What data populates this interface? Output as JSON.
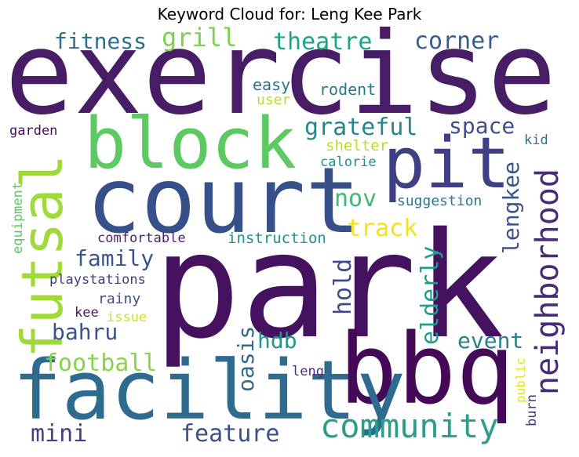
{
  "chart_data": {
    "type": "wordcloud",
    "title": "Keyword Cloud for: Leng Kee Park",
    "words": [
      {
        "text": "park",
        "color": "#45125f"
      },
      {
        "text": "exercise",
        "color": "#471d66"
      },
      {
        "text": "bbq",
        "color": "#440a57"
      },
      {
        "text": "court",
        "color": "#38508a"
      },
      {
        "text": "facility",
        "color": "#2e6b8e"
      },
      {
        "text": "block",
        "color": "#5dc962"
      },
      {
        "text": "pit",
        "color": "#3e3f85"
      },
      {
        "text": "futsal",
        "color": "#9fda3a"
      },
      {
        "text": "neighborhood",
        "color": "#472b77"
      },
      {
        "text": "community",
        "color": "#2a9e8a"
      },
      {
        "text": "fitness",
        "color": "#2f6f8e"
      },
      {
        "text": "grill",
        "color": "#7cd250"
      },
      {
        "text": "theatre",
        "color": "#1fa287"
      },
      {
        "text": "corner",
        "color": "#365d8d"
      },
      {
        "text": "grateful",
        "color": "#24878e"
      },
      {
        "text": "space",
        "color": "#3c4f8a"
      },
      {
        "text": "lengkee",
        "color": "#3a538b"
      },
      {
        "text": "track",
        "color": "#f5e11d"
      },
      {
        "text": "nov",
        "color": "#41b86f"
      },
      {
        "text": "family",
        "color": "#3a548c"
      },
      {
        "text": "hold",
        "color": "#3e4a89"
      },
      {
        "text": "elderly",
        "color": "#1f9f88"
      },
      {
        "text": "oasis",
        "color": "#31688e"
      },
      {
        "text": "hdb",
        "color": "#22958b"
      },
      {
        "text": "event",
        "color": "#26818e"
      },
      {
        "text": "bahru",
        "color": "#3b528b"
      },
      {
        "text": "football",
        "color": "#86d449"
      },
      {
        "text": "mini",
        "color": "#424186"
      },
      {
        "text": "feature",
        "color": "#3b508a"
      },
      {
        "text": "easy",
        "color": "#2e6e8e"
      },
      {
        "text": "rodent",
        "color": "#2a778e"
      },
      {
        "text": "user",
        "color": "#b8de29"
      },
      {
        "text": "garden",
        "color": "#450f5d"
      },
      {
        "text": "shelter",
        "color": "#b6de2b"
      },
      {
        "text": "kid",
        "color": "#2d708e"
      },
      {
        "text": "calorie",
        "color": "#238a8d"
      },
      {
        "text": "equipment",
        "color": "#5ac864"
      },
      {
        "text": "suggestion",
        "color": "#2a788e"
      },
      {
        "text": "comfortable",
        "color": "#481f70"
      },
      {
        "text": "instruction",
        "color": "#20938c"
      },
      {
        "text": "playstations",
        "color": "#443983"
      },
      {
        "text": "rainy",
        "color": "#3c4f8a"
      },
      {
        "text": "kee",
        "color": "#48186a"
      },
      {
        "text": "issue",
        "color": "#cde11d"
      },
      {
        "text": "leng",
        "color": "#46307e"
      },
      {
        "text": "public",
        "color": "#e7e419"
      },
      {
        "text": "burn",
        "color": "#453882"
      }
    ]
  }
}
